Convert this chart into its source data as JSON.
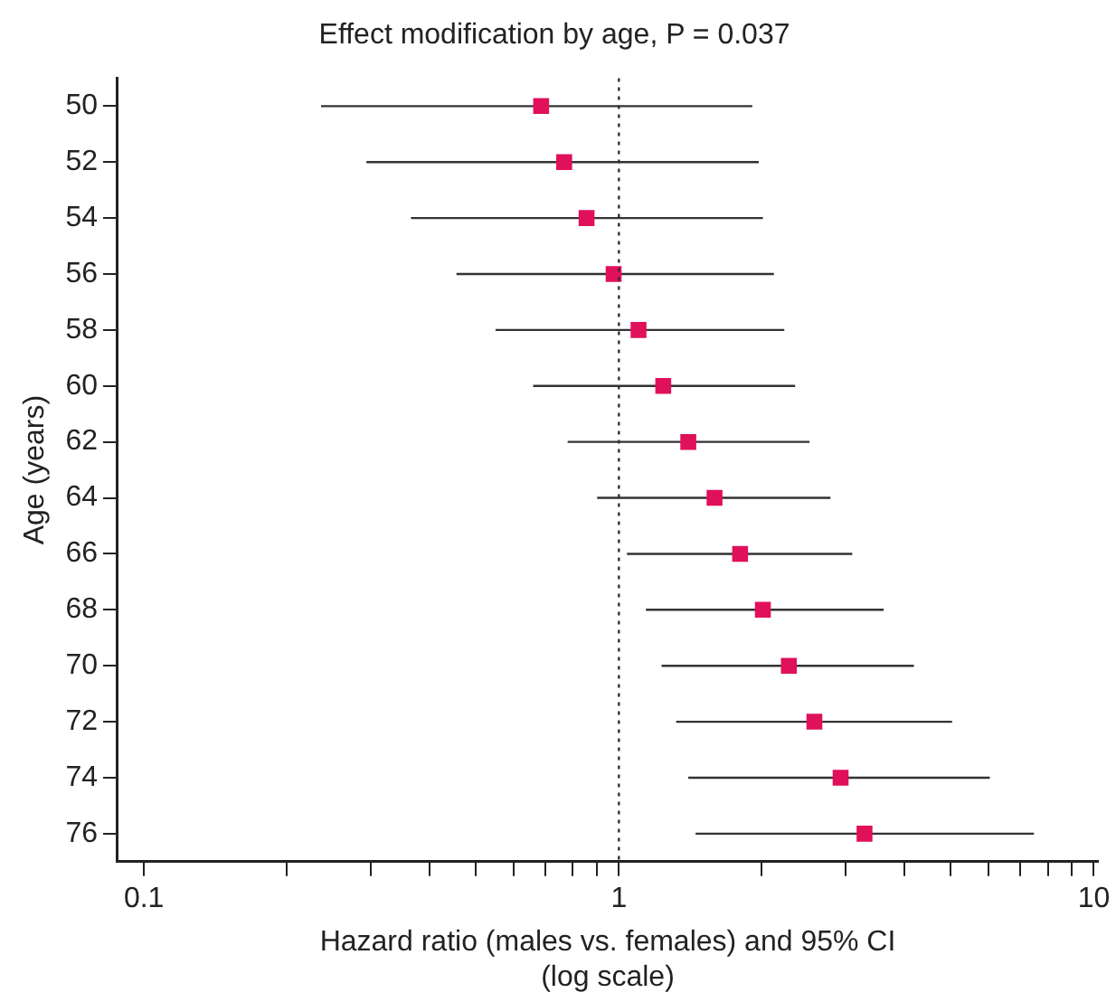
{
  "chart_data": {
    "type": "scatter",
    "orientation": "horizontal",
    "title": "Effect modification by age, P = 0.037",
    "xlabel": "Hazard ratio (males vs. females) and 95% CI\n(log scale)",
    "ylabel": "Age (years)",
    "categories": [
      "50",
      "52",
      "54",
      "56",
      "58",
      "60",
      "62",
      "64",
      "66",
      "68",
      "70",
      "72",
      "74",
      "76"
    ],
    "values": [
      0.686,
      0.767,
      0.855,
      0.975,
      1.1,
      1.24,
      1.4,
      1.59,
      1.8,
      2.01,
      2.28,
      2.58,
      2.93,
      3.29
    ],
    "errors": [
      [
        0.236,
        1.91
      ],
      [
        0.294,
        1.97
      ],
      [
        0.365,
        2.01
      ],
      [
        0.455,
        2.12
      ],
      [
        0.55,
        2.23
      ],
      [
        0.66,
        2.35
      ],
      [
        0.78,
        2.52
      ],
      [
        0.9,
        2.79
      ],
      [
        1.04,
        3.1
      ],
      [
        1.14,
        3.61
      ],
      [
        1.23,
        4.18
      ],
      [
        1.32,
        5.03
      ],
      [
        1.4,
        6.04
      ],
      [
        1.45,
        7.48
      ]
    ],
    "color": "#e0105a",
    "marker": "square",
    "log": "x",
    "grid": false,
    "legend": false,
    "xlim": [
      0.088,
      10.2
    ],
    "xticks": [
      0.1,
      {
        "value": 0.2,
        "label": null
      },
      {
        "value": 0.3,
        "label": null
      },
      {
        "value": 0.4,
        "label": null
      },
      {
        "value": 0.5,
        "label": null
      },
      {
        "value": 0.6,
        "label": null
      },
      {
        "value": 0.7,
        "label": null
      },
      {
        "value": 0.8,
        "label": null
      },
      {
        "value": 0.9,
        "label": null
      },
      1,
      {
        "value": 2,
        "label": null
      },
      {
        "value": 3,
        "label": null
      },
      {
        "value": 4,
        "label": null
      },
      {
        "value": 5,
        "label": null
      },
      {
        "value": 6,
        "label": null
      },
      {
        "value": 7,
        "label": null
      },
      {
        "value": 8,
        "label": null
      },
      {
        "value": 9,
        "label": null
      },
      10
    ],
    "ref_lines": [
      {
        "axis": "x",
        "value": 1,
        "line_style": "dotted",
        "color": "#333333"
      }
    ]
  }
}
